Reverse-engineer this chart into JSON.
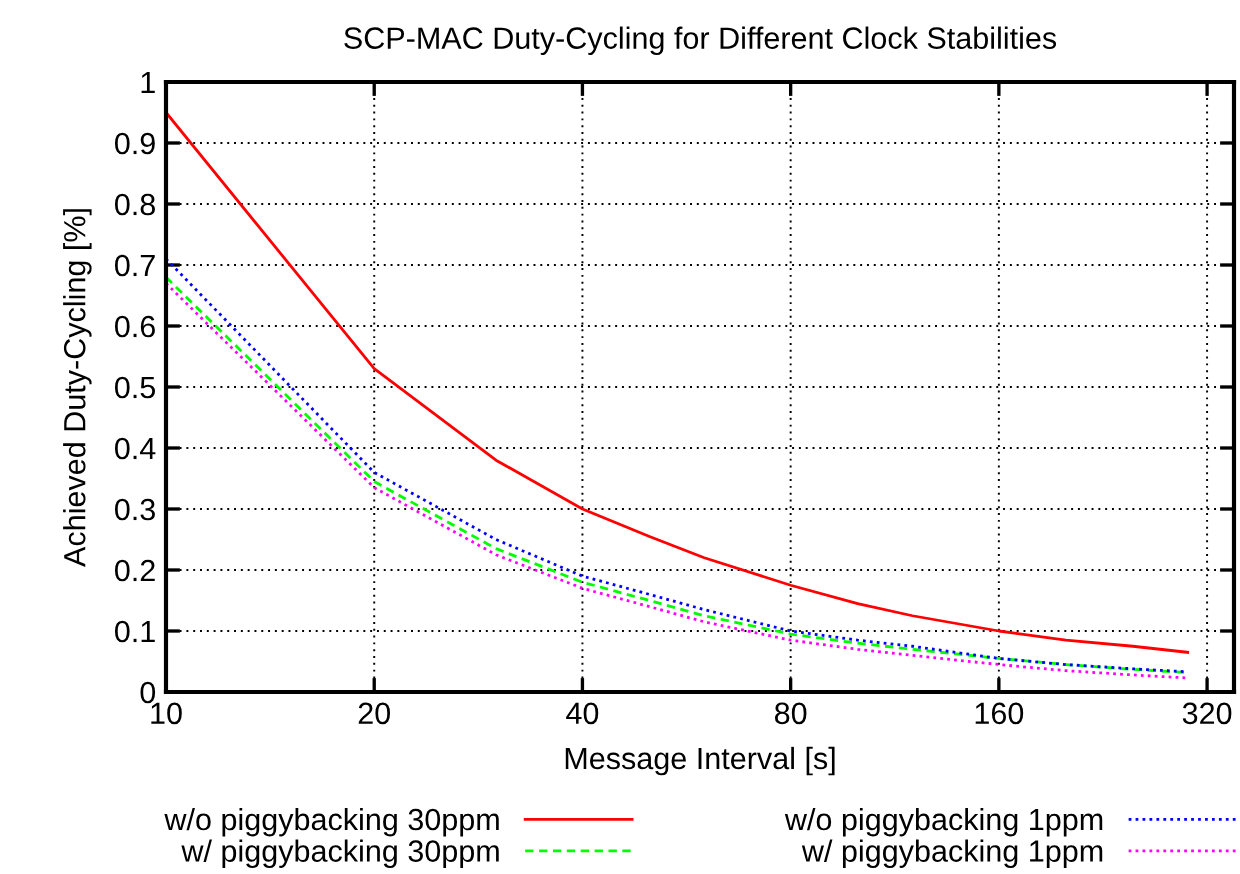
{
  "chart_data": {
    "type": "line",
    "title": "SCP-MAC Duty-Cycling for Different Clock Stabilities",
    "xlabel": "Message Interval [s]",
    "ylabel": "Achieved Duty-Cycling [%]",
    "x": [
      10,
      20,
      30,
      40,
      50,
      60,
      80,
      100,
      120,
      160,
      200,
      250,
      300
    ],
    "series": [
      {
        "name": "w/o piggybacking 30ppm",
        "color": "#ff0000",
        "line_style": "solid",
        "values": [
          0.95,
          0.53,
          0.38,
          0.3,
          0.255,
          0.22,
          0.175,
          0.145,
          0.125,
          0.1,
          0.085,
          0.075,
          0.065
        ]
      },
      {
        "name": "w/ piggybacking 30ppm",
        "color": "#00ff00",
        "line_style": "dashed",
        "values": [
          0.68,
          0.345,
          0.235,
          0.18,
          0.15,
          0.125,
          0.095,
          0.08,
          0.07,
          0.055,
          0.045,
          0.037,
          0.032
        ]
      },
      {
        "name": "w/o piggybacking 1ppm",
        "color": "#0000ff",
        "line_style": "dotted",
        "values": [
          0.71,
          0.36,
          0.25,
          0.19,
          0.16,
          0.135,
          0.1,
          0.085,
          0.075,
          0.055,
          0.045,
          0.038,
          0.033
        ]
      },
      {
        "name": "w/ piggybacking 1ppm",
        "color": "#ff00ff",
        "line_style": "dotted",
        "values": [
          0.67,
          0.335,
          0.225,
          0.17,
          0.14,
          0.115,
          0.085,
          0.07,
          0.06,
          0.045,
          0.035,
          0.028,
          0.023
        ]
      }
    ],
    "log": "x",
    "xlim": [
      10,
      350
    ],
    "xticks": [
      10,
      20,
      40,
      80,
      160,
      320
    ],
    "ylim": [
      0,
      1
    ],
    "yticks": [
      0,
      0.1,
      0.2,
      0.3,
      0.4,
      0.5,
      0.6,
      0.7,
      0.8,
      0.9,
      1
    ],
    "grid": true,
    "legend": "bottom",
    "marker": "none"
  }
}
